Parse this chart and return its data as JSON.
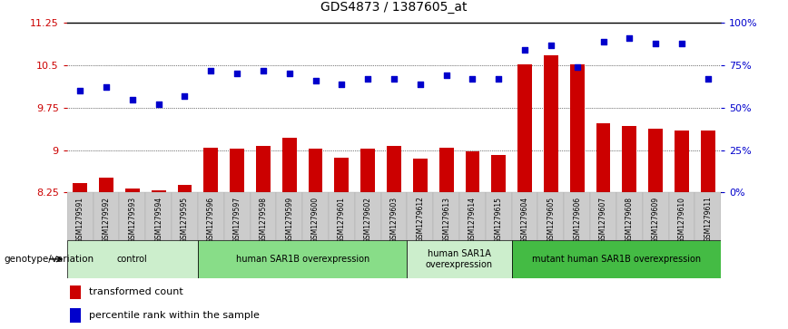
{
  "title": "GDS4873 / 1387605_at",
  "samples": [
    "GSM1279591",
    "GSM1279592",
    "GSM1279593",
    "GSM1279594",
    "GSM1279595",
    "GSM1279596",
    "GSM1279597",
    "GSM1279598",
    "GSM1279599",
    "GSM1279600",
    "GSM1279601",
    "GSM1279602",
    "GSM1279603",
    "GSM1279612",
    "GSM1279613",
    "GSM1279614",
    "GSM1279615",
    "GSM1279604",
    "GSM1279605",
    "GSM1279606",
    "GSM1279607",
    "GSM1279608",
    "GSM1279609",
    "GSM1279610",
    "GSM1279611"
  ],
  "bar_values": [
    8.42,
    8.52,
    8.32,
    8.28,
    8.38,
    9.05,
    9.02,
    9.08,
    9.22,
    9.02,
    8.87,
    9.02,
    9.07,
    8.85,
    9.05,
    8.98,
    8.92,
    10.52,
    10.68,
    10.52,
    9.48,
    9.42,
    9.38,
    9.35,
    9.35
  ],
  "dot_values": [
    60,
    62,
    55,
    52,
    57,
    72,
    70,
    72,
    70,
    66,
    64,
    67,
    67,
    64,
    69,
    67,
    67,
    84,
    87,
    74,
    89,
    91,
    88,
    88,
    67
  ],
  "ylim_left": [
    8.25,
    11.25
  ],
  "ylim_right": [
    0,
    100
  ],
  "yticks_left": [
    8.25,
    9.0,
    9.75,
    10.5,
    11.25
  ],
  "yticks_right": [
    0,
    25,
    50,
    75,
    100
  ],
  "ytick_labels_left": [
    "8.25",
    "9",
    "9.75",
    "10.5",
    "11.25"
  ],
  "ytick_labels_right": [
    "0%",
    "25%",
    "50%",
    "75%",
    "100%"
  ],
  "bar_color": "#cc0000",
  "dot_color": "#0000cc",
  "bar_bottom": 8.25,
  "groups": [
    {
      "label": "control",
      "start": 0,
      "end": 5,
      "color": "#cceecc"
    },
    {
      "label": "human SAR1B overexpression",
      "start": 5,
      "end": 13,
      "color": "#88dd88"
    },
    {
      "label": "human SAR1A\noverexpression",
      "start": 13,
      "end": 17,
      "color": "#cceecc"
    },
    {
      "label": "mutant human SAR1B overexpression",
      "start": 17,
      "end": 25,
      "color": "#44bb44"
    }
  ],
  "genotype_label": "genotype/variation",
  "legend_bar_label": "transformed count",
  "legend_dot_label": "percentile rank within the sample",
  "bar_color_legend": "#cc0000",
  "dot_color_legend": "#0000cc"
}
